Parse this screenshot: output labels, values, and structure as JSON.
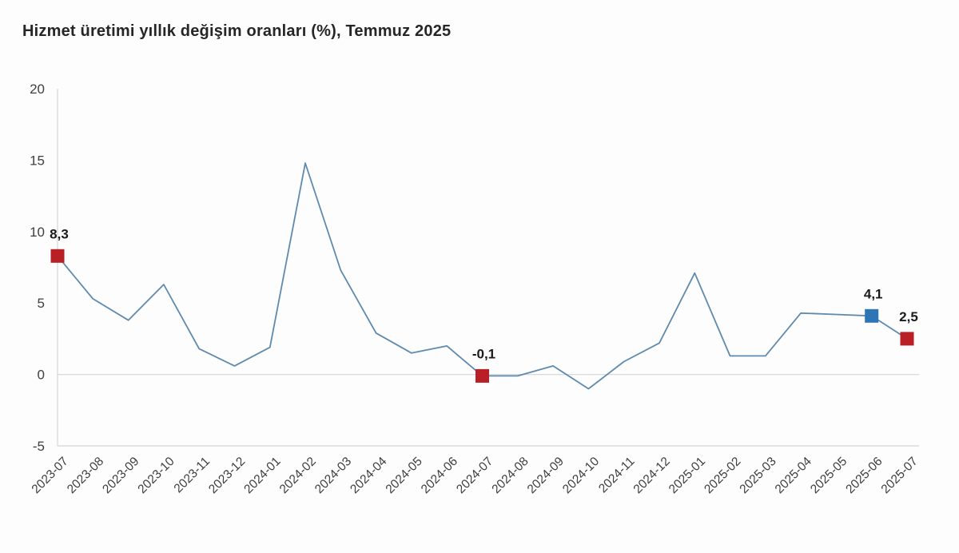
{
  "header": {
    "title": "Hizmet üretimi yıllık değişim oranları (%), Temmuz 2025"
  },
  "chart_data": {
    "type": "line",
    "title": "Hizmet üretimi yıllık değişim oranları (%), Temmuz 2025",
    "xlabel": "",
    "ylabel": "",
    "ylim": [
      -5,
      20
    ],
    "yticks": [
      -5,
      0,
      5,
      10,
      15,
      20
    ],
    "grid": "horizontal gridline at 0 and bottom baseline at -5 only; light vertical y-axis spine",
    "legend": "none",
    "decimal_separator": ",",
    "categories": [
      "2023-07",
      "2023-08",
      "2023-09",
      "2023-10",
      "2023-11",
      "2023-12",
      "2024-01",
      "2024-02",
      "2024-03",
      "2024-04",
      "2024-05",
      "2024-06",
      "2024-07",
      "2024-08",
      "2024-09",
      "2024-10",
      "2024-11",
      "2024-12",
      "2025-01",
      "2025-02",
      "2025-03",
      "2025-04",
      "2025-05",
      "2025-06",
      "2025-07"
    ],
    "values": [
      8.3,
      5.3,
      3.8,
      6.3,
      1.8,
      0.6,
      1.9,
      14.8,
      7.3,
      2.9,
      1.5,
      2.0,
      -0.1,
      -0.1,
      0.6,
      -1.0,
      0.9,
      2.2,
      7.1,
      1.3,
      1.3,
      4.3,
      4.2,
      4.1,
      2.5
    ],
    "line_color": "#5f8aae",
    "axis_color": "#d9d9d9",
    "marker_colors": {
      "red": "#b92025",
      "blue": "#2e75b6"
    },
    "markers": [
      {
        "category": "2023-07",
        "index": 0,
        "color": "red",
        "label": "8,3"
      },
      {
        "category": "2024-07",
        "index": 12,
        "color": "red",
        "label": "-0,1"
      },
      {
        "category": "2025-06",
        "index": 23,
        "color": "blue",
        "label": "4,1"
      },
      {
        "category": "2025-07",
        "index": 24,
        "color": "red",
        "label": "2,5"
      }
    ]
  }
}
